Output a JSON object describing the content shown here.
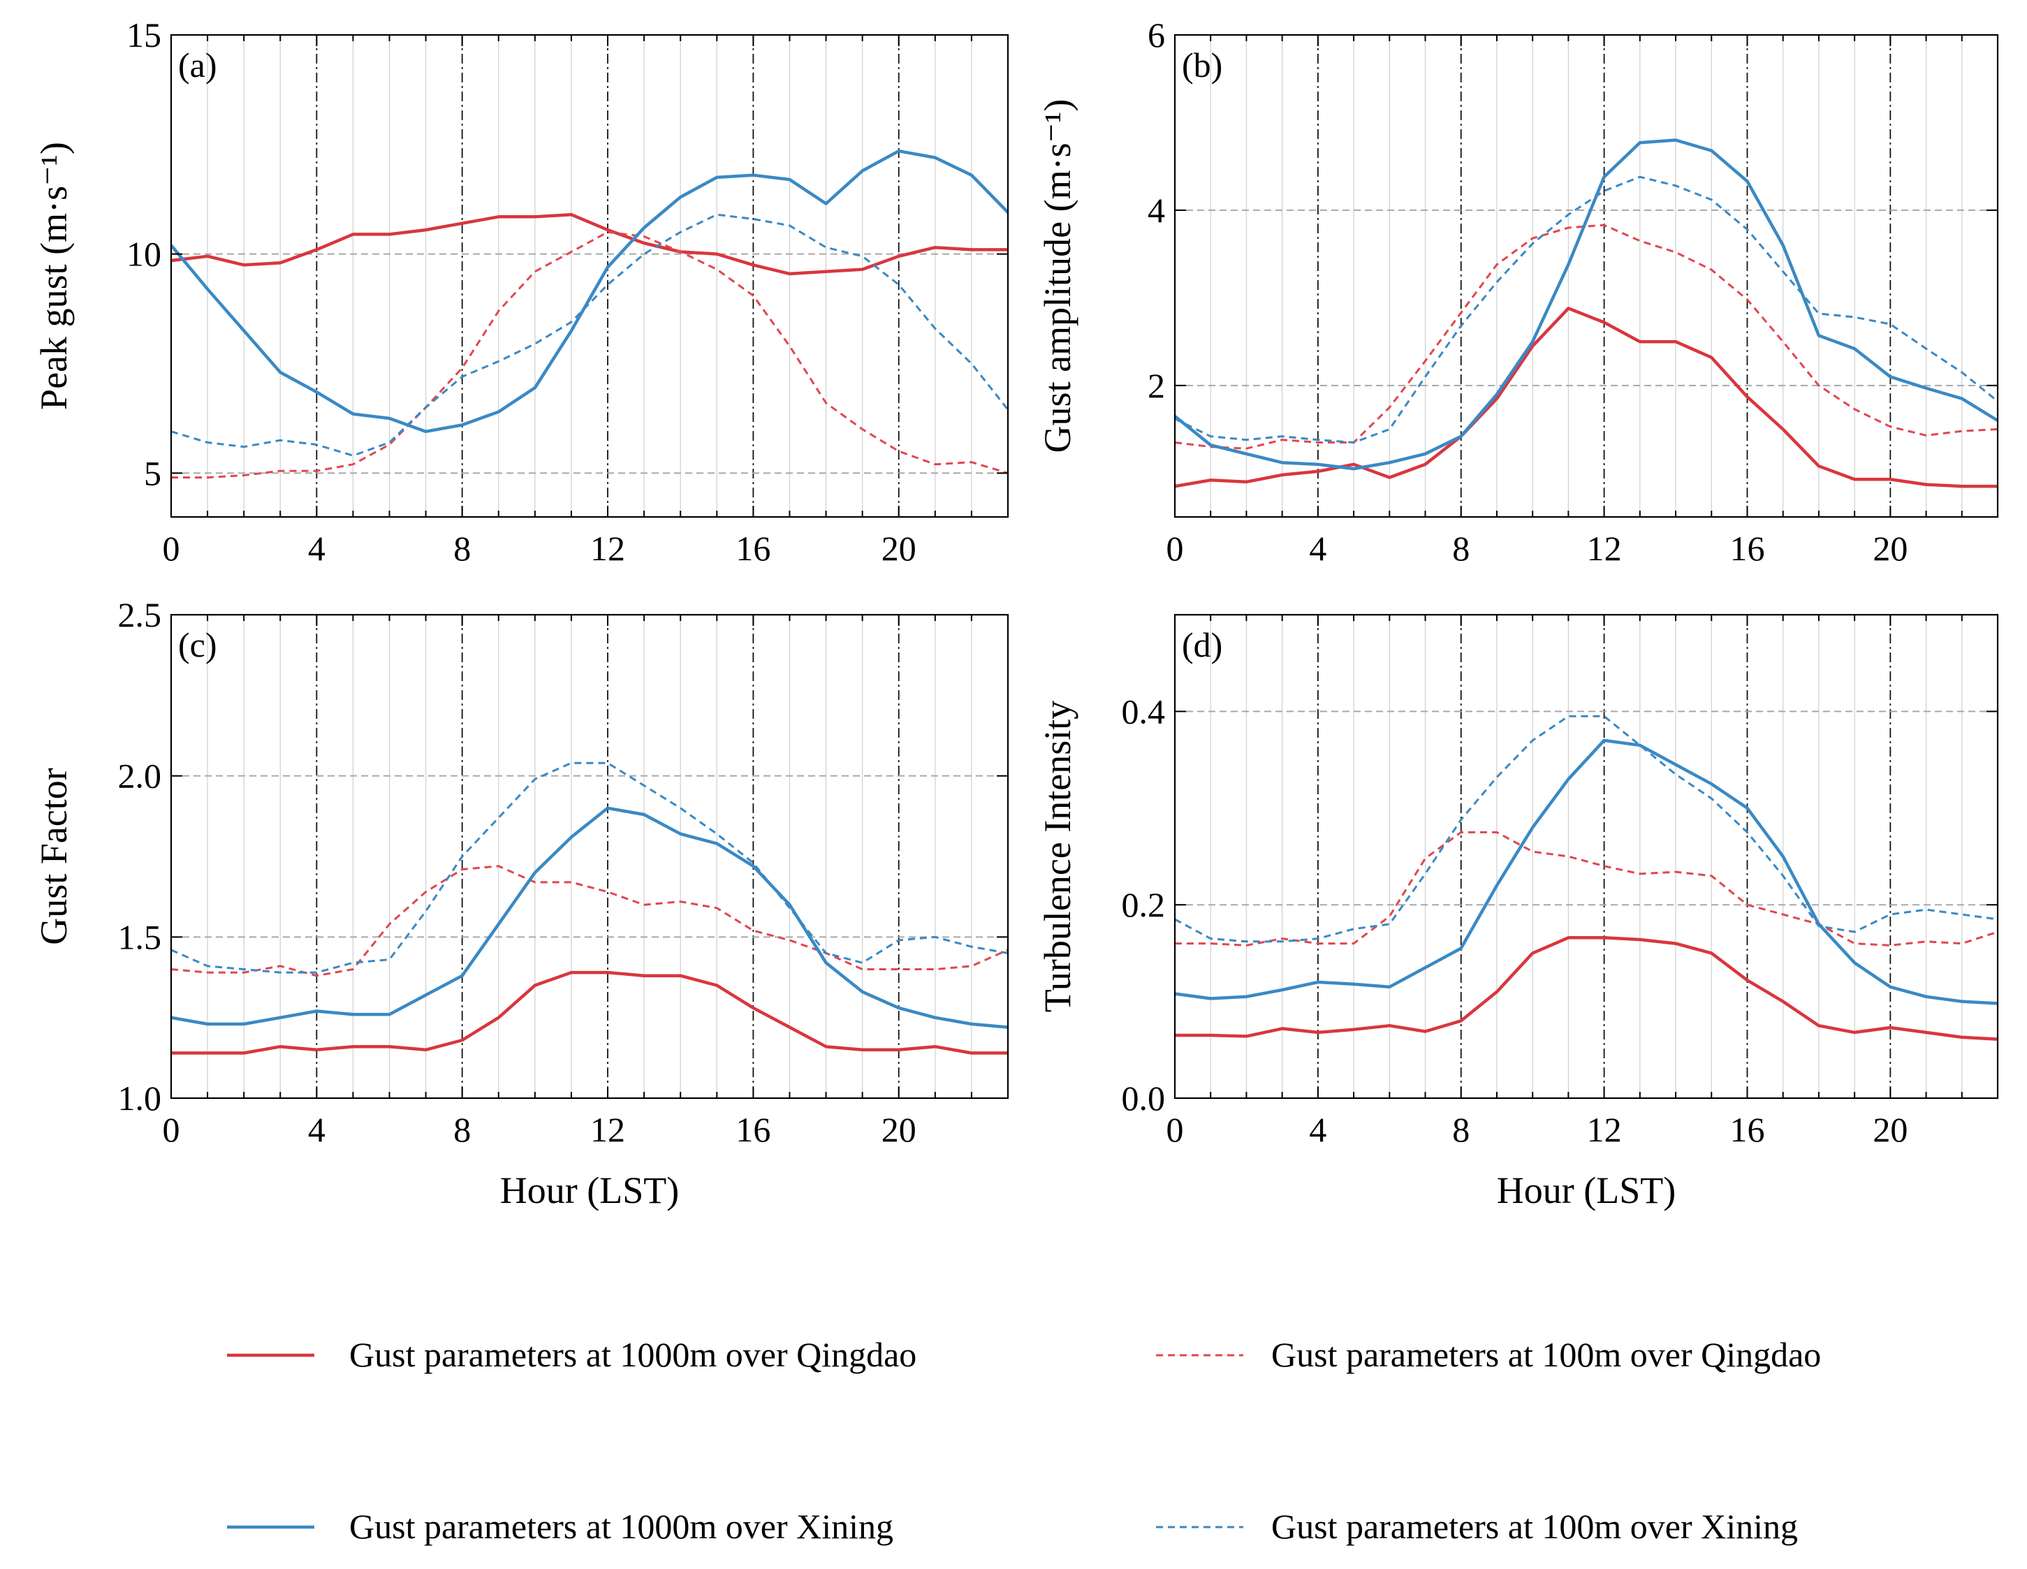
{
  "figure": {
    "legend": [
      {
        "label": "Gust parameters at 1000m over Qingdao",
        "color": "#d9363e",
        "style": "solid"
      },
      {
        "label": "Gust parameters at 100m over Qingdao",
        "color": "#e0474f",
        "style": "dashed"
      },
      {
        "label": "Gust parameters at 1000m over Xining",
        "color": "#3a89c4",
        "style": "solid"
      },
      {
        "label": "Gust parameters at 100m over Xining",
        "color": "#3a89c4",
        "style": "dashed"
      }
    ]
  },
  "chart_data": [
    {
      "type": "line",
      "panel": "(a)",
      "xlabel": "",
      "ylabel": "Peak gust (m·s⁻¹)",
      "xlim": [
        0,
        23
      ],
      "ylim": [
        4,
        15
      ],
      "xticks": [
        0,
        4,
        8,
        12,
        16,
        20
      ],
      "yticks": [
        5,
        10,
        15
      ],
      "grid_y": [
        5,
        10
      ],
      "x": [
        0,
        1,
        2,
        3,
        4,
        5,
        6,
        7,
        8,
        9,
        10,
        11,
        12,
        13,
        14,
        15,
        16,
        17,
        18,
        19,
        20,
        21,
        22,
        23
      ],
      "series": [
        {
          "name": "Gust parameters at 1000m over Qingdao",
          "values": [
            9.85,
            9.95,
            9.75,
            9.8,
            10.1,
            10.45,
            10.45,
            10.55,
            10.7,
            10.85,
            10.85,
            10.9,
            10.55,
            10.25,
            10.05,
            10.0,
            9.75,
            9.55,
            9.6,
            9.65,
            9.95,
            10.15,
            10.1,
            10.1
          ]
        },
        {
          "name": "Gust parameters at 100m over Qingdao",
          "values": [
            4.9,
            4.9,
            4.95,
            5.05,
            5.05,
            5.2,
            5.65,
            6.5,
            7.4,
            8.7,
            9.6,
            10.05,
            10.5,
            10.4,
            10.05,
            9.65,
            9.05,
            7.9,
            6.6,
            6.0,
            5.5,
            5.2,
            5.25,
            5.0
          ]
        },
        {
          "name": "Gust parameters at 1000m over Xining",
          "values": [
            10.2,
            9.2,
            8.25,
            7.3,
            6.85,
            6.35,
            6.25,
            5.95,
            6.1,
            6.4,
            6.95,
            8.25,
            9.7,
            10.6,
            11.3,
            11.75,
            11.8,
            11.7,
            11.15,
            11.9,
            12.35,
            12.2,
            11.8,
            10.95
          ]
        },
        {
          "name": "Gust parameters at 100m over Xining",
          "values": [
            5.95,
            5.7,
            5.6,
            5.75,
            5.65,
            5.4,
            5.7,
            6.5,
            7.2,
            7.55,
            7.95,
            8.45,
            9.3,
            10.0,
            10.5,
            10.9,
            10.8,
            10.65,
            10.15,
            9.95,
            9.3,
            8.3,
            7.5,
            6.45
          ]
        }
      ]
    },
    {
      "type": "line",
      "panel": "(b)",
      "xlabel": "",
      "ylabel": "Gust amplitude (m·s⁻¹)",
      "xlim": [
        0,
        23
      ],
      "ylim": [
        0.5,
        6
      ],
      "xticks": [
        0,
        4,
        8,
        12,
        16,
        20
      ],
      "yticks": [
        2,
        4,
        6
      ],
      "grid_y": [
        2,
        4
      ],
      "x": [
        0,
        1,
        2,
        3,
        4,
        5,
        6,
        7,
        8,
        9,
        10,
        11,
        12,
        13,
        14,
        15,
        16,
        17,
        18,
        19,
        20,
        21,
        22,
        23
      ],
      "series": [
        {
          "name": "Gust parameters at 1000m over Qingdao",
          "values": [
            0.85,
            0.92,
            0.9,
            0.98,
            1.02,
            1.1,
            0.95,
            1.1,
            1.42,
            1.85,
            2.45,
            2.88,
            2.72,
            2.5,
            2.5,
            2.32,
            1.87,
            1.5,
            1.08,
            0.93,
            0.93,
            0.87,
            0.85,
            0.85
          ]
        },
        {
          "name": "Gust parameters at 100m over Qingdao",
          "values": [
            1.35,
            1.3,
            1.28,
            1.38,
            1.35,
            1.35,
            1.75,
            2.28,
            2.83,
            3.38,
            3.68,
            3.8,
            3.83,
            3.65,
            3.52,
            3.32,
            2.98,
            2.5,
            2.0,
            1.73,
            1.53,
            1.43,
            1.48,
            1.5
          ]
        },
        {
          "name": "Gust parameters at 1000m over Xining",
          "values": [
            1.65,
            1.32,
            1.22,
            1.12,
            1.1,
            1.05,
            1.12,
            1.22,
            1.42,
            1.9,
            2.5,
            3.38,
            4.38,
            4.77,
            4.8,
            4.68,
            4.33,
            3.6,
            2.57,
            2.42,
            2.1,
            1.97,
            1.85,
            1.6
          ]
        },
        {
          "name": "Gust parameters at 100m over Xining",
          "values": [
            1.62,
            1.42,
            1.38,
            1.42,
            1.38,
            1.35,
            1.5,
            2.1,
            2.68,
            3.18,
            3.62,
            3.95,
            4.22,
            4.38,
            4.28,
            4.12,
            3.78,
            3.3,
            2.82,
            2.78,
            2.7,
            2.42,
            2.15,
            1.82
          ]
        }
      ]
    },
    {
      "type": "line",
      "panel": "(c)",
      "xlabel": "Hour (LST)",
      "ylabel": "Gust Factor",
      "xlim": [
        0,
        23
      ],
      "ylim": [
        1.0,
        2.5
      ],
      "xticks": [
        0,
        4,
        8,
        12,
        16,
        20
      ],
      "yticks": [
        1.0,
        1.5,
        2.0,
        2.5
      ],
      "grid_y": [
        1.5,
        2.0
      ],
      "x": [
        0,
        1,
        2,
        3,
        4,
        5,
        6,
        7,
        8,
        9,
        10,
        11,
        12,
        13,
        14,
        15,
        16,
        17,
        18,
        19,
        20,
        21,
        22,
        23
      ],
      "series": [
        {
          "name": "Gust parameters at 1000m over Qingdao",
          "values": [
            1.14,
            1.14,
            1.14,
            1.16,
            1.15,
            1.16,
            1.16,
            1.15,
            1.18,
            1.25,
            1.35,
            1.39,
            1.39,
            1.38,
            1.38,
            1.35,
            1.28,
            1.22,
            1.16,
            1.15,
            1.15,
            1.16,
            1.14,
            1.14
          ]
        },
        {
          "name": "Gust parameters at 100m over Qingdao",
          "values": [
            1.4,
            1.39,
            1.39,
            1.41,
            1.38,
            1.4,
            1.54,
            1.64,
            1.71,
            1.72,
            1.67,
            1.67,
            1.64,
            1.6,
            1.61,
            1.59,
            1.52,
            1.49,
            1.45,
            1.4,
            1.4,
            1.4,
            1.41,
            1.46
          ]
        },
        {
          "name": "Gust parameters at 1000m over Xining",
          "values": [
            1.25,
            1.23,
            1.23,
            1.25,
            1.27,
            1.26,
            1.26,
            1.32,
            1.38,
            1.54,
            1.7,
            1.81,
            1.9,
            1.88,
            1.82,
            1.79,
            1.72,
            1.6,
            1.42,
            1.33,
            1.28,
            1.25,
            1.23,
            1.22
          ]
        },
        {
          "name": "Gust parameters at 100m over Xining",
          "values": [
            1.46,
            1.41,
            1.4,
            1.39,
            1.39,
            1.42,
            1.43,
            1.58,
            1.75,
            1.87,
            1.99,
            2.04,
            2.04,
            1.97,
            1.9,
            1.82,
            1.73,
            1.59,
            1.45,
            1.42,
            1.49,
            1.5,
            1.47,
            1.45
          ]
        }
      ]
    },
    {
      "type": "line",
      "panel": "(d)",
      "xlabel": "Hour (LST)",
      "ylabel": "Turbulence Intensity",
      "xlim": [
        0,
        23
      ],
      "ylim": [
        0.0,
        0.5
      ],
      "xticks": [
        0,
        4,
        8,
        12,
        16,
        20
      ],
      "yticks": [
        0.0,
        0.2,
        0.4
      ],
      "grid_y": [
        0.2,
        0.4
      ],
      "x": [
        0,
        1,
        2,
        3,
        4,
        5,
        6,
        7,
        8,
        9,
        10,
        11,
        12,
        13,
        14,
        15,
        16,
        17,
        18,
        19,
        20,
        21,
        22,
        23
      ],
      "series": [
        {
          "name": "Gust parameters at 1000m over Qingdao",
          "values": [
            0.065,
            0.065,
            0.064,
            0.072,
            0.068,
            0.071,
            0.075,
            0.069,
            0.08,
            0.11,
            0.15,
            0.166,
            0.166,
            0.164,
            0.16,
            0.15,
            0.122,
            0.1,
            0.075,
            0.068,
            0.073,
            0.068,
            0.063,
            0.061
          ]
        },
        {
          "name": "Gust parameters at 100m over Qingdao",
          "values": [
            0.16,
            0.16,
            0.158,
            0.165,
            0.16,
            0.16,
            0.188,
            0.248,
            0.275,
            0.275,
            0.255,
            0.25,
            0.24,
            0.232,
            0.234,
            0.23,
            0.2,
            0.19,
            0.18,
            0.16,
            0.158,
            0.162,
            0.16,
            0.172
          ]
        },
        {
          "name": "Gust parameters at 1000m over Xining",
          "values": [
            0.108,
            0.103,
            0.105,
            0.112,
            0.12,
            0.118,
            0.115,
            0.135,
            0.155,
            0.22,
            0.28,
            0.33,
            0.37,
            0.365,
            0.345,
            0.325,
            0.3,
            0.25,
            0.18,
            0.14,
            0.115,
            0.105,
            0.1,
            0.098
          ]
        },
        {
          "name": "Gust parameters at 100m over Xining",
          "values": [
            0.185,
            0.165,
            0.162,
            0.162,
            0.165,
            0.175,
            0.18,
            0.232,
            0.288,
            0.332,
            0.37,
            0.395,
            0.395,
            0.365,
            0.335,
            0.31,
            0.275,
            0.23,
            0.178,
            0.172,
            0.19,
            0.195,
            0.19,
            0.185
          ]
        }
      ]
    }
  ]
}
